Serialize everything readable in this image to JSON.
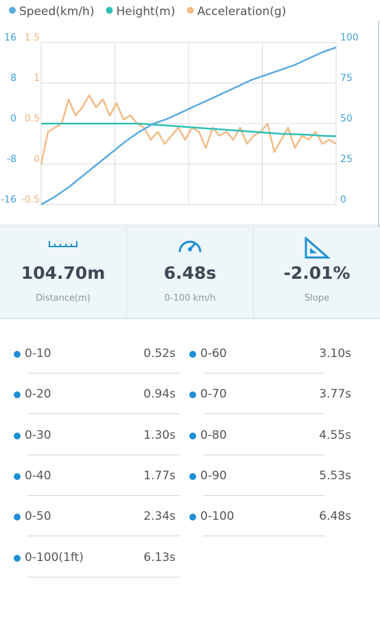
{
  "chart_data": {
    "type": "line",
    "ylim": [
      -16,
      16
    ],
    "yticks": [
      -16,
      -8,
      0,
      8,
      16
    ],
    "y_color": "#3fa0d8",
    "y2lim": [
      0,
      100
    ],
    "y2ticks": [
      0,
      25,
      50,
      75,
      100
    ],
    "y2_color": "#3fa0d8",
    "y3lim": [
      -0.5,
      1.5
    ],
    "y3ticks": [
      -0.5,
      0,
      0.5,
      1,
      1.5
    ],
    "y3_color": "#f0b47a",
    "grid": true,
    "series": [
      {
        "name": "Speed(km/h)",
        "color": "#5aaae0",
        "axis": "y2",
        "values": [
          0,
          5,
          11,
          18,
          25,
          32,
          39,
          45,
          50,
          53,
          57,
          61,
          65,
          69,
          73,
          77,
          80,
          83,
          86,
          90,
          94,
          97
        ]
      },
      {
        "name": "Height(m)",
        "color": "#2fbfb5",
        "axis": "y",
        "values": [
          0,
          0,
          0,
          0,
          0,
          0,
          0,
          0,
          -0.2,
          -0.4,
          -0.6,
          -0.8,
          -1,
          -1.2,
          -1.4,
          -1.6,
          -1.8,
          -2,
          -2.1,
          -2.2,
          -2.4,
          -2.5
        ]
      },
      {
        "name": "Acceleration(g)",
        "color": "#f3bb86",
        "axis": "y3",
        "values": [
          0,
          0.4,
          0.45,
          0.5,
          0.8,
          0.6,
          0.7,
          0.85,
          0.7,
          0.8,
          0.6,
          0.75,
          0.55,
          0.6,
          0.5,
          0.45,
          0.3,
          0.4,
          0.25,
          0.35,
          0.45,
          0.3,
          0.45,
          0.4,
          0.2,
          0.45,
          0.35,
          0.4,
          0.3,
          0.45,
          0.25,
          0.35,
          0.4,
          0.5,
          0.15,
          0.3,
          0.45,
          0.2,
          0.35,
          0.3,
          0.4,
          0.25,
          0.3,
          0.25
        ]
      }
    ]
  },
  "stats": [
    {
      "value": "104.70m",
      "label": "Distance(m)"
    },
    {
      "value": "6.48s",
      "label": "0-100 km/h"
    },
    {
      "value": "-2.01%",
      "label": "Slope"
    }
  ],
  "splits": {
    "left": [
      {
        "label": "0-10",
        "time": "0.52s"
      },
      {
        "label": "0-20",
        "time": "0.94s"
      },
      {
        "label": "0-30",
        "time": "1.30s"
      },
      {
        "label": "0-40",
        "time": "1.77s"
      },
      {
        "label": "0-50",
        "time": "2.34s"
      },
      {
        "label": "0-100(1ft)",
        "time": "6.13s"
      }
    ],
    "right": [
      {
        "label": "0-60",
        "time": "3.10s"
      },
      {
        "label": "0-70",
        "time": "3.77s"
      },
      {
        "label": "0-80",
        "time": "4.55s"
      },
      {
        "label": "0-90",
        "time": "5.53s"
      },
      {
        "label": "0-100",
        "time": "6.48s"
      }
    ]
  }
}
